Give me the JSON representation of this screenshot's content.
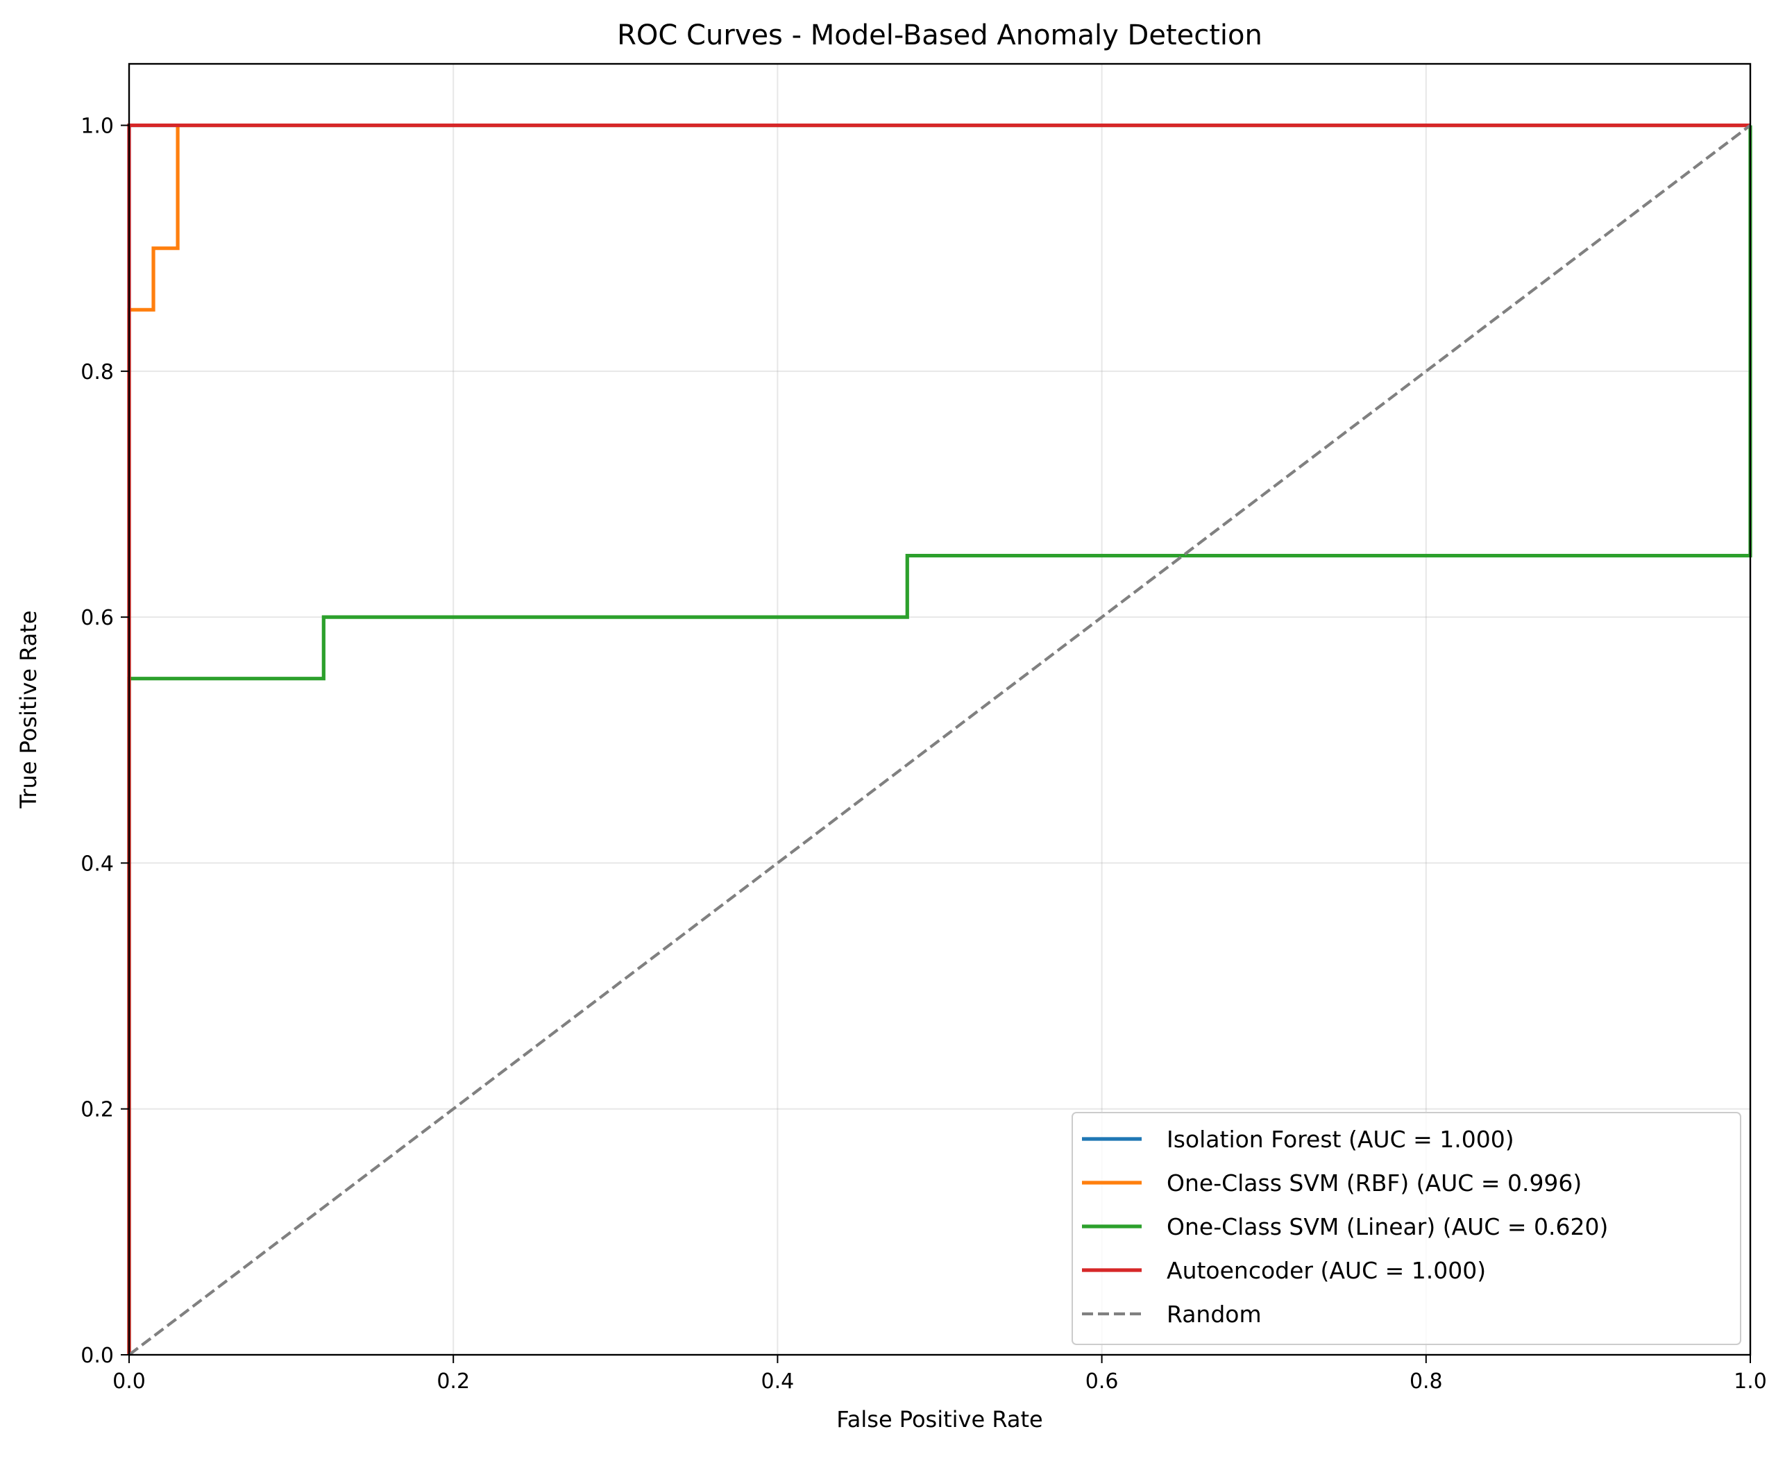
{
  "chart_data": {
    "type": "line",
    "title": "ROC Curves - Model-Based Anomaly Detection",
    "xlabel": "False Positive Rate",
    "ylabel": "True Positive Rate",
    "xlim": [
      0.0,
      1.0
    ],
    "ylim": [
      0.0,
      1.05
    ],
    "xticks": [
      "0.0",
      "0.2",
      "0.4",
      "0.6",
      "0.8",
      "1.0"
    ],
    "yticks": [
      "0.0",
      "0.2",
      "0.4",
      "0.6",
      "0.8",
      "1.0"
    ],
    "grid": true,
    "legend_position": "bottom-right",
    "series": [
      {
        "name": "Isolation Forest (AUC = 1.000)",
        "color": "#1f77b4",
        "style": "solid",
        "x": [
          0.0,
          0.0,
          1.0
        ],
        "y": [
          0.0,
          1.0,
          1.0
        ]
      },
      {
        "name": "One-Class SVM (RBF) (AUC = 0.996)",
        "color": "#ff7f0e",
        "style": "solid",
        "x": [
          0.0,
          0.0,
          0.015,
          0.015,
          0.03,
          0.03,
          1.0
        ],
        "y": [
          0.0,
          0.85,
          0.85,
          0.9,
          0.9,
          1.0,
          1.0
        ]
      },
      {
        "name": "One-Class SVM (Linear) (AUC = 0.620)",
        "color": "#2ca02c",
        "style": "solid",
        "x": [
          0.0,
          0.0,
          0.12,
          0.12,
          0.48,
          0.48,
          1.0,
          1.0
        ],
        "y": [
          0.0,
          0.55,
          0.55,
          0.6,
          0.6,
          0.65,
          0.65,
          1.0
        ]
      },
      {
        "name": "Autoencoder (AUC = 1.000)",
        "color": "#d62728",
        "style": "solid",
        "x": [
          0.0,
          0.0,
          1.0
        ],
        "y": [
          0.0,
          1.0,
          1.0
        ]
      },
      {
        "name": "Random",
        "color": "#808080",
        "style": "dashed",
        "x": [
          0.0,
          1.0
        ],
        "y": [
          0.0,
          1.0
        ]
      }
    ]
  }
}
